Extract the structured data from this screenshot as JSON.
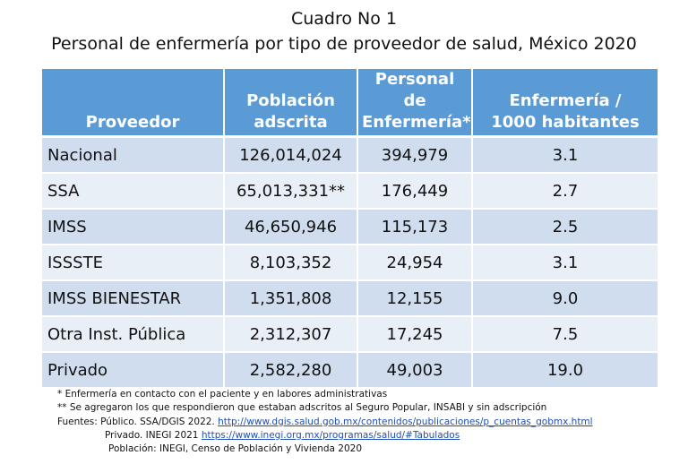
{
  "title": {
    "line1": "Cuadro No 1",
    "line2": "Personal de enfermería por tipo de proveedor de salud, México 2020"
  },
  "table": {
    "headers": [
      "Proveedor",
      "Población\nadscrita",
      "Personal de\nEnfermería*",
      "Enfermería /\n1000 habitantes"
    ],
    "rows": [
      [
        "Nacional",
        "126,014,024",
        "394,979",
        "3.1"
      ],
      [
        "SSA",
        "65,013,331**",
        "176,449",
        "2.7"
      ],
      [
        "IMSS",
        "46,650,946",
        "115,173",
        "2.5"
      ],
      [
        "ISSSTE",
        "8,103,352",
        "24,954",
        "3.1"
      ],
      [
        "IMSS BIENESTAR",
        "1,351,808",
        "12,155",
        "9.0"
      ],
      [
        "Otra Inst. Pública",
        "2,312,307",
        "17,245",
        "7.5"
      ],
      [
        "Privado",
        "2,582,280",
        "49,003",
        "19.0"
      ]
    ]
  },
  "notes": {
    "n1": "* Enfermería en contacto con el paciente y en labores administrativas",
    "n2": "** Se agregaron los que respondieron que estaban adscritos al Seguro Popular, INSABI y sin adscripción",
    "source1_prefix": "Fuentes: Público. SSA/DGIS 2022.",
    "source1_link": "http://www.dgis.salud.gob.mx/contenidos/publicaciones/p_cuentas_gobmx.html",
    "source2_prefix": "Privado. INEGI 2021",
    "source2_link": "https://www.inegi.org.mx/programas/salud/#Tabulados",
    "source3": "Población: INEGI, Censo de Población y Vivienda 2020"
  }
}
